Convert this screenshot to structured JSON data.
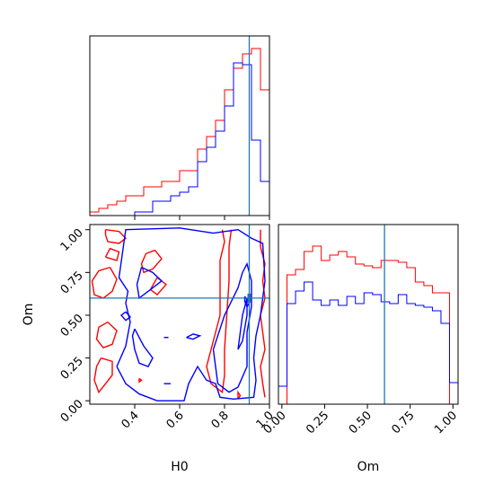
{
  "chart_data": {
    "type": "corner",
    "parameters": [
      "H0",
      "Om"
    ],
    "truth": {
      "H0": 0.91,
      "Om": 0.6,
      "color": "#1f77b4"
    },
    "series_colors": {
      "red": "#ff0000",
      "blue": "#0000ff"
    },
    "panels": [
      {
        "id": "h0_hist",
        "type": "histogram",
        "xlim": [
          0.2,
          1.0
        ],
        "bins": [
          0.2,
          0.24,
          0.28,
          0.32,
          0.36,
          0.4,
          0.44,
          0.48,
          0.52,
          0.56,
          0.6,
          0.64,
          0.68,
          0.72,
          0.76,
          0.8,
          0.84,
          0.88,
          0.92,
          0.96,
          1.0
        ],
        "series": [
          {
            "color": "red",
            "counts": [
              2,
              4,
              6,
              8,
              11,
              11,
              16,
              16,
              19,
              19,
              25,
              25,
              37,
              44,
              53,
              70,
              82,
              90,
              93,
              70
            ]
          },
          {
            "color": "blue",
            "counts": [
              0,
              0,
              0,
              0,
              0,
              2,
              2,
              8,
              8,
              11,
              13,
              16,
              30,
              38,
              47,
              61,
              85,
              84,
              42,
              19
            ]
          }
        ],
        "ylim": [
          0,
          100
        ],
        "xticks": [
          0.4,
          0.6,
          0.8,
          1.0
        ],
        "xtick_labels": [],
        "yticks": []
      },
      {
        "id": "om_h0_2d",
        "type": "contour",
        "xlim": [
          0.2,
          1.0
        ],
        "ylim": [
          -0.02,
          1.03
        ],
        "xticks": [
          0.4,
          0.6,
          0.8,
          1.0
        ],
        "xtick_labels": [
          "0.4",
          "0.6",
          "0.8",
          "1.0"
        ],
        "yticks": [
          0.0,
          0.25,
          0.5,
          0.75,
          1.0
        ],
        "ytick_labels": [
          "0.00",
          "0.25",
          "0.50",
          "0.75",
          "1.00"
        ],
        "xlabel": "H0",
        "ylabel": "Om",
        "series": [
          {
            "color": "red",
            "contours": [
              [
                [
                  0.27,
                  1.0
                ],
                [
                  0.33,
                  0.99
                ],
                [
                  0.36,
                  0.95
                ],
                [
                  0.33,
                  0.92
                ],
                [
                  0.28,
                  0.93
                ],
                [
                  0.27,
                  0.97
                ],
                [
                  0.27,
                  1.0
                ]
              ],
              [
                [
                  0.29,
                  0.78
                ],
                [
                  0.32,
                  0.71
                ],
                [
                  0.3,
                  0.64
                ],
                [
                  0.26,
                  0.6
                ],
                [
                  0.22,
                  0.62
                ],
                [
                  0.21,
                  0.7
                ],
                [
                  0.24,
                  0.76
                ],
                [
                  0.29,
                  0.78
                ]
              ],
              [
                [
                  0.27,
                  0.84
                ],
                [
                  0.32,
                  0.82
                ],
                [
                  0.33,
                  0.87
                ],
                [
                  0.29,
                  0.89
                ],
                [
                  0.27,
                  0.84
                ]
              ],
              [
                [
                  0.28,
                  0.46
                ],
                [
                  0.32,
                  0.41
                ],
                [
                  0.3,
                  0.33
                ],
                [
                  0.26,
                  0.31
                ],
                [
                  0.23,
                  0.36
                ],
                [
                  0.24,
                  0.43
                ],
                [
                  0.28,
                  0.46
                ]
              ],
              [
                [
                  0.25,
                  0.25
                ],
                [
                  0.3,
                  0.23
                ],
                [
                  0.3,
                  0.15
                ],
                [
                  0.27,
                  0.1
                ],
                [
                  0.24,
                  0.05
                ],
                [
                  0.22,
                  0.12
                ],
                [
                  0.23,
                  0.2
                ],
                [
                  0.25,
                  0.25
                ]
              ],
              [
                [
                  0.49,
                  0.88
                ],
                [
                  0.52,
                  0.83
                ],
                [
                  0.48,
                  0.77
                ],
                [
                  0.44,
                  0.75
                ],
                [
                  0.43,
                  0.8
                ],
                [
                  0.45,
                  0.86
                ],
                [
                  0.49,
                  0.88
                ]
              ],
              [
                [
                  0.5,
                  0.72
                ],
                [
                  0.54,
                  0.68
                ],
                [
                  0.5,
                  0.62
                ],
                [
                  0.47,
                  0.65
                ],
                [
                  0.5,
                  0.72
                ]
              ],
              [
                [
                  0.79,
                  1.0
                ],
                [
                  0.8,
                  0.93
                ],
                [
                  0.78,
                  0.82
                ],
                [
                  0.78,
                  0.7
                ],
                [
                  0.78,
                  0.6
                ],
                [
                  0.78,
                  0.5
                ],
                [
                  0.76,
                  0.4
                ],
                [
                  0.74,
                  0.3
                ],
                [
                  0.72,
                  0.2
                ],
                [
                  0.74,
                  0.1
                ],
                [
                  0.79,
                  0.05
                ],
                [
                  0.8,
                  0.15
                ],
                [
                  0.8,
                  0.3
                ],
                [
                  0.81,
                  0.5
                ],
                [
                  0.82,
                  0.7
                ],
                [
                  0.82,
                  0.9
                ],
                [
                  0.83,
                  1.0
                ]
              ],
              [
                [
                  0.96,
                  1.0
                ],
                [
                  0.96,
                  0.9
                ],
                [
                  0.98,
                  0.8
                ],
                [
                  0.97,
                  0.7
                ],
                [
                  0.98,
                  0.6
                ],
                [
                  0.96,
                  0.5
                ],
                [
                  0.97,
                  0.4
                ],
                [
                  0.98,
                  0.3
                ],
                [
                  0.96,
                  0.2
                ],
                [
                  0.97,
                  0.1
                ],
                [
                  0.98,
                  0.02
                ]
              ],
              [
                [
                  0.86,
                  0.01
                ],
                [
                  0.87,
                  0.03
                ],
                [
                  0.86,
                  0.05
                ],
                [
                  0.86,
                  0.01
                ]
              ],
              [
                [
                  0.42,
                  0.13
                ],
                [
                  0.43,
                  0.12
                ],
                [
                  0.42,
                  0.11
                ],
                [
                  0.42,
                  0.13
                ]
              ]
            ]
          },
          {
            "color": "blue",
            "contours": [
              [
                [
                  0.32,
                  0.2
                ],
                [
                  0.36,
                  0.32
                ],
                [
                  0.38,
                  0.46
                ],
                [
                  0.36,
                  0.57
                ],
                [
                  0.37,
                  0.64
                ],
                [
                  0.33,
                  0.72
                ],
                [
                  0.36,
                  1.0
                ],
                [
                  0.6,
                  1.01
                ],
                [
                  0.75,
                  0.98
                ],
                [
                  0.86,
                  1.0
                ],
                [
                  0.92,
                  0.95
                ],
                [
                  0.97,
                  0.92
                ],
                [
                  0.98,
                  0.7
                ],
                [
                  0.96,
                  0.5
                ],
                [
                  0.94,
                  0.38
                ],
                [
                  0.93,
                  0.25
                ],
                [
                  0.94,
                  0.12
                ],
                [
                  0.93,
                  0.02
                ],
                [
                  0.84,
                  0.01
                ],
                [
                  0.78,
                  0.02
                ],
                [
                  0.76,
                  0.1
                ],
                [
                  0.72,
                  0.12
                ],
                [
                  0.68,
                  0.2
                ],
                [
                  0.64,
                  0.1
                ],
                [
                  0.62,
                  0.0
                ],
                [
                  0.5,
                  0.0
                ],
                [
                  0.42,
                  0.04
                ],
                [
                  0.36,
                  0.1
                ],
                [
                  0.32,
                  0.2
                ]
              ],
              [
                [
                  0.43,
                  0.78
                ],
                [
                  0.48,
                  0.75
                ],
                [
                  0.52,
                  0.7
                ],
                [
                  0.46,
                  0.64
                ],
                [
                  0.42,
                  0.6
                ],
                [
                  0.41,
                  0.68
                ],
                [
                  0.43,
                  0.78
                ]
              ],
              [
                [
                  0.4,
                  0.42
                ],
                [
                  0.44,
                  0.32
                ],
                [
                  0.48,
                  0.25
                ],
                [
                  0.46,
                  0.2
                ],
                [
                  0.42,
                  0.22
                ],
                [
                  0.4,
                  0.3
                ],
                [
                  0.39,
                  0.38
                ],
                [
                  0.4,
                  0.42
                ]
              ],
              [
                [
                  0.36,
                  0.52
                ],
                [
                  0.38,
                  0.49
                ],
                [
                  0.36,
                  0.47
                ],
                [
                  0.34,
                  0.5
                ],
                [
                  0.36,
                  0.52
                ]
              ],
              [
                [
                  0.75,
                  0.3
                ],
                [
                  0.8,
                  0.5
                ],
                [
                  0.86,
                  0.66
                ],
                [
                  0.88,
                  0.75
                ],
                [
                  0.9,
                  0.8
                ],
                [
                  0.92,
                  0.7
                ],
                [
                  0.92,
                  0.55
                ],
                [
                  0.9,
                  0.4
                ],
                [
                  0.9,
                  0.2
                ],
                [
                  0.86,
                  0.08
                ],
                [
                  0.82,
                  0.05
                ],
                [
                  0.77,
                  0.1
                ],
                [
                  0.75,
                  0.3
                ]
              ],
              [
                [
                  0.86,
                  0.3
                ],
                [
                  0.88,
                  0.5
                ],
                [
                  0.9,
                  0.6
                ],
                [
                  0.9,
                  0.5
                ],
                [
                  0.88,
                  0.35
                ],
                [
                  0.86,
                  0.3
                ]
              ],
              [
                [
                  0.63,
                  0.37
                ],
                [
                  0.66,
                  0.39
                ],
                [
                  0.69,
                  0.38
                ],
                [
                  0.66,
                  0.36
                ],
                [
                  0.63,
                  0.37
                ]
              ],
              [
                [
                  0.53,
                  0.37
                ],
                [
                  0.55,
                  0.37
                ]
              ],
              [
                [
                  0.53,
                  0.1
                ],
                [
                  0.56,
                  0.1
                ]
              ],
              [
                [
                  0.89,
                  0.61
                ],
                [
                  0.91,
                  0.57
                ],
                [
                  0.9,
                  0.55
                ],
                [
                  0.89,
                  0.58
                ],
                [
                  0.89,
                  0.61
                ]
              ]
            ]
          }
        ]
      },
      {
        "id": "om_hist",
        "type": "histogram",
        "xlim": [
          -0.02,
          1.03
        ],
        "bins": [
          -0.02,
          0.03,
          0.08,
          0.13,
          0.18,
          0.23,
          0.28,
          0.33,
          0.38,
          0.43,
          0.48,
          0.53,
          0.58,
          0.63,
          0.68,
          0.73,
          0.78,
          0.83,
          0.88,
          0.93,
          0.98,
          1.03
        ],
        "series": [
          {
            "color": "red",
            "counts": [
              0,
              72,
              75,
              85,
              88,
              80,
              83,
              85,
              82,
              78,
              77,
              76,
              80,
              80,
              79,
              76,
              68,
              66,
              62,
              62,
              0
            ]
          },
          {
            "color": "blue",
            "counts": [
              10,
              56,
              63,
              68,
              58,
              55,
              58,
              55,
              60,
              56,
              62,
              61,
              57,
              56,
              61,
              56,
              55,
              54,
              52,
              45,
              12
            ]
          }
        ],
        "ylim": [
          0,
          100
        ],
        "xticks": [
          0.0,
          0.25,
          0.5,
          0.75,
          1.0
        ],
        "xtick_labels": [
          "0.00",
          "0.25",
          "0.50",
          "0.75",
          "1.00"
        ],
        "xlabel": "Om",
        "yticks": []
      }
    ]
  }
}
